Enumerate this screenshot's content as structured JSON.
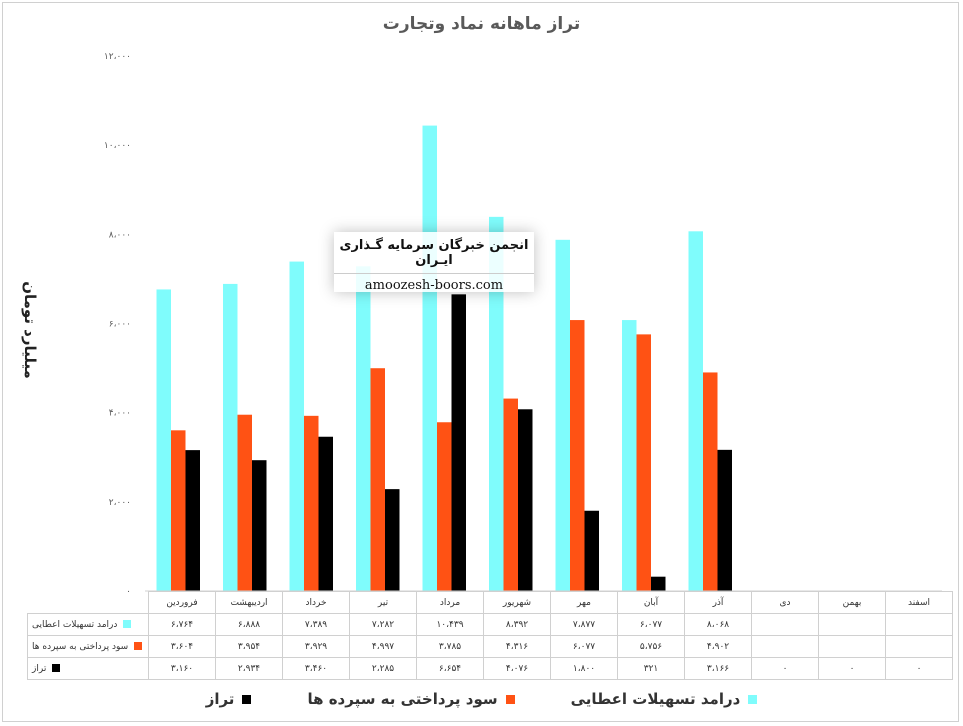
{
  "chart_data": {
    "type": "bar",
    "title": "تراز ماهانه نماد وتجارت",
    "ylabel": "میلیارد تومان",
    "ylim": [
      0,
      12000
    ],
    "y_ticks": [
      "۰",
      "۲،۰۰۰",
      "۴،۰۰۰",
      "۶،۰۰۰",
      "۸،۰۰۰",
      "۱۰،۰۰۰",
      "۱۲،۰۰۰"
    ],
    "y_tick_values": [
      0,
      2000,
      4000,
      6000,
      8000,
      10000,
      12000
    ],
    "categories": [
      "فروردین",
      "اردیبهشت",
      "خرداد",
      "تیر",
      "مرداد",
      "شهریور",
      "مهر",
      "آبان",
      "آذر",
      "دی",
      "بهمن",
      "اسفند"
    ],
    "series": [
      {
        "name": "درامد تسهیلات اعطایی",
        "color": "#7ffcfc",
        "values": [
          6764,
          6888,
          7389,
          7282,
          10439,
          8392,
          7877,
          6077,
          8068,
          null,
          null,
          null
        ],
        "labels": [
          "۶،۷۶۴",
          "۶،۸۸۸",
          "۷،۳۸۹",
          "۷،۲۸۲",
          "۱۰،۴۳۹",
          "۸،۳۹۲",
          "۷،۸۷۷",
          "۶،۰۷۷",
          "۸،۰۶۸",
          "",
          "",
          ""
        ]
      },
      {
        "name": "سود پرداختی به سپرده ها",
        "color": "#ff5214",
        "values": [
          3604,
          3954,
          3929,
          4997,
          3785,
          4316,
          6077,
          5756,
          4902,
          null,
          null,
          null
        ],
        "labels": [
          "۳،۶۰۴",
          "۳،۹۵۴",
          "۳،۹۲۹",
          "۴،۹۹۷",
          "۳،۷۸۵",
          "۴،۳۱۶",
          "۶،۰۷۷",
          "۵،۷۵۶",
          "۴،۹۰۲",
          "",
          "",
          ""
        ]
      },
      {
        "name": "تراز",
        "color": "#000000",
        "values": [
          3160,
          2934,
          3460,
          2285,
          6654,
          4076,
          1800,
          321,
          3166,
          0,
          0,
          0
        ],
        "labels": [
          "۳،۱۶۰",
          "۲،۹۳۴",
          "۳،۴۶۰",
          "۲،۲۸۵",
          "۶،۶۵۴",
          "۴،۰۷۶",
          "۱،۸۰۰",
          "۳۲۱",
          "۳،۱۶۶",
          "۰",
          "۰",
          "۰"
        ]
      }
    ],
    "grid": false,
    "legend": "bottom"
  },
  "watermark": {
    "title": "انجمن خبرگان سرمایه گـذاری ایـران",
    "url": "amoozesh-boors.com"
  }
}
